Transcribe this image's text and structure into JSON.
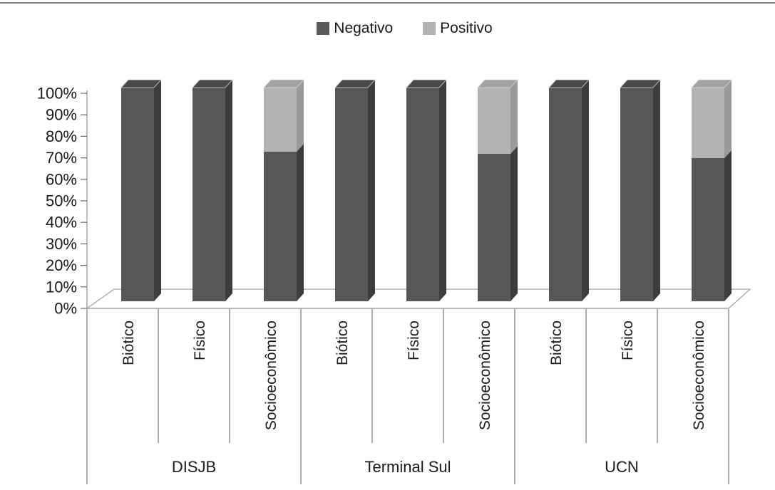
{
  "page": {
    "background": "#ffffff",
    "top_border_color": "#808080"
  },
  "legend": {
    "items": [
      {
        "label": "Negativo",
        "color": "#595959"
      },
      {
        "label": "Positivo",
        "color": "#b3b3b3"
      }
    ]
  },
  "colors": {
    "axis_line": "#a6a6a6",
    "tick_mark": "#6e6e6e",
    "separator_line": "#787878",
    "text": "#1a1a1a",
    "floor_fill": "#ffffff",
    "top_face_edge": "#d5d5d5"
  },
  "chart_data": {
    "type": "bar",
    "variant": "100-percent-stacked-column-3d",
    "title": "",
    "xlabel": "",
    "ylabel": "",
    "ylim": [
      0,
      100
    ],
    "grid": false,
    "legend_position": "top",
    "ytick_labels": [
      "0%",
      "10%",
      "20%",
      "30%",
      "40%",
      "50%",
      "60%",
      "70%",
      "80%",
      "90%",
      "100%"
    ],
    "groups": [
      {
        "label": "DISJB",
        "categories": [
          "Biótico",
          "Físico",
          "Socioeconômico"
        ]
      },
      {
        "label": "Terminal Sul",
        "categories": [
          "Biótico",
          "Físico",
          "Socioeconômico"
        ]
      },
      {
        "label": "UCN",
        "categories": [
          "Biótico",
          "Físico",
          "Socioeconômico"
        ]
      }
    ],
    "series": [
      {
        "name": "Negativo",
        "color": "#575757",
        "color_top": "#494949",
        "color_side": "#3d3d3d",
        "values": [
          100,
          100,
          70,
          100,
          100,
          69,
          100,
          100,
          67
        ]
      },
      {
        "name": "Positivo",
        "color": "#b3b3b3",
        "color_top": "#a3a3a3",
        "color_side": "#9a9a9a",
        "values": [
          0,
          0,
          30,
          0,
          0,
          31,
          0,
          0,
          33
        ]
      }
    ]
  }
}
